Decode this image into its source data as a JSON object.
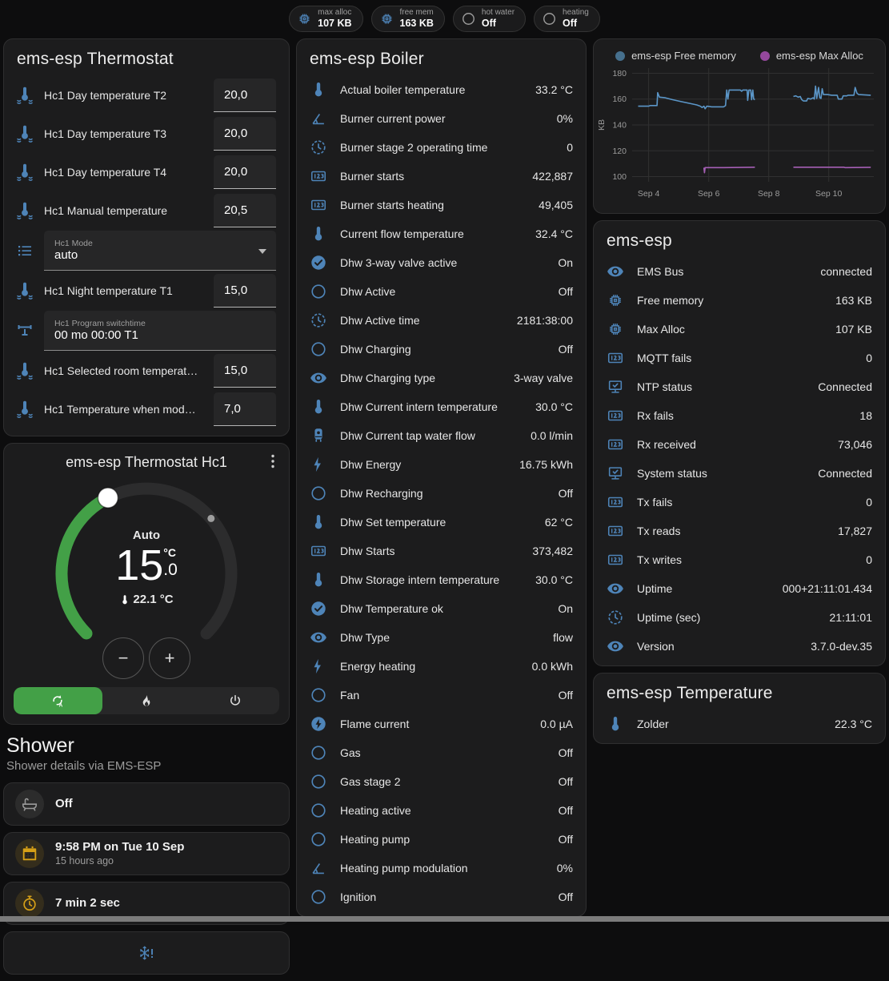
{
  "header": {
    "chips": [
      {
        "icon": "memory",
        "color": "c-blue",
        "label": "max alloc",
        "value": "107 KB"
      },
      {
        "icon": "memory",
        "color": "c-blue",
        "label": "free mem",
        "value": "163 KB"
      },
      {
        "icon": "circle",
        "color": "c-gray",
        "label": "hot water",
        "value": "Off"
      },
      {
        "icon": "circle",
        "color": "c-gray",
        "label": "heating",
        "value": "Off"
      }
    ]
  },
  "thermostat_card": {
    "title": "ems-esp Thermostat",
    "rows": [
      {
        "type": "number",
        "icon": "thermometer-water",
        "label": "Hc1 Day temperature T2",
        "value": "20,0"
      },
      {
        "type": "number",
        "icon": "thermometer-water",
        "label": "Hc1 Day temperature T3",
        "value": "20,0"
      },
      {
        "type": "number",
        "icon": "thermometer-water",
        "label": "Hc1 Day temperature T4",
        "value": "20,0"
      },
      {
        "type": "number",
        "icon": "thermometer-water",
        "label": "Hc1 Manual temperature",
        "value": "20,5"
      },
      {
        "type": "select",
        "icon": "list",
        "box_label": "Hc1 Mode",
        "value": "auto"
      },
      {
        "type": "number",
        "icon": "thermometer-water",
        "label": "Hc1 Night temperature T1",
        "value": "15,0"
      },
      {
        "type": "text",
        "icon": "pipe",
        "box_label": "Hc1 Program switchtime",
        "value": "00 mo 00:00 T1"
      },
      {
        "type": "number",
        "icon": "thermometer-water",
        "label": "Hc1 Selected room temperat…",
        "value": "15,0"
      },
      {
        "type": "number",
        "icon": "thermometer-water",
        "label": "Hc1 Temperature when mod…",
        "value": "7,0"
      }
    ]
  },
  "dial_card": {
    "title": "ems-esp Thermostat Hc1",
    "mode_label": "Auto",
    "target_int": "15",
    "target_dec": ".0",
    "unit": "°C",
    "current_label": "22.1 °C",
    "min": 5,
    "max": 30,
    "target": 15,
    "current": 22.1,
    "accent": "#43a047",
    "modes": [
      {
        "icon": "auto",
        "active": true
      },
      {
        "icon": "fire",
        "active": false
      },
      {
        "icon": "power",
        "active": false
      }
    ]
  },
  "shower": {
    "title": "Shower",
    "subtitle": "Shower details via EMS-ESP",
    "cards": [
      {
        "icon": "bathtub",
        "color": "c-gray",
        "bg": "",
        "value": "Off",
        "sub": "",
        "name": "shower-state-card",
        "centered": false
      },
      {
        "icon": "calendar",
        "color": "c-amber",
        "bg": "amber",
        "value": "9:58 PM on Tue 10 Sep",
        "sub": "15 hours ago",
        "name": "shower-last-time-card",
        "centered": false
      },
      {
        "icon": "timer",
        "color": "c-amber",
        "bg": "amber",
        "value": "7 min 2 sec",
        "sub": "",
        "name": "shower-duration-card",
        "centered": false
      },
      {
        "icon": "snowflake-alert",
        "color": "c-blue",
        "bg": "bare",
        "value": "",
        "sub": "",
        "name": "shower-alert-card",
        "centered": true
      }
    ]
  },
  "boiler_card": {
    "title": "ems-esp Boiler",
    "rows": [
      {
        "icon": "thermometer",
        "label": "Actual boiler temperature",
        "value": "33.2 °C"
      },
      {
        "icon": "angle",
        "label": "Burner current power",
        "value": "0%"
      },
      {
        "icon": "clock",
        "label": "Burner stage 2 operating time",
        "value": "0"
      },
      {
        "icon": "counter",
        "label": "Burner starts",
        "value": "422,887"
      },
      {
        "icon": "counter",
        "label": "Burner starts heating",
        "value": "49,405"
      },
      {
        "icon": "thermometer",
        "label": "Current flow temperature",
        "value": "32.4 °C"
      },
      {
        "icon": "check-circle",
        "label": "Dhw 3-way valve active",
        "value": "On"
      },
      {
        "icon": "circle",
        "label": "Dhw Active",
        "value": "Off"
      },
      {
        "icon": "clock",
        "label": "Dhw Active time",
        "value": "2181:38:00"
      },
      {
        "icon": "circle",
        "label": "Dhw Charging",
        "value": "Off"
      },
      {
        "icon": "eye",
        "label": "Dhw Charging type",
        "value": "3-way valve"
      },
      {
        "icon": "thermometer",
        "label": "Dhw Current intern temperature",
        "value": "30.0 °C"
      },
      {
        "icon": "boiler",
        "label": "Dhw Current tap water flow",
        "value": "0.0 l/min"
      },
      {
        "icon": "flash",
        "label": "Dhw Energy",
        "value": "16.75 kWh"
      },
      {
        "icon": "circle",
        "label": "Dhw Recharging",
        "value": "Off"
      },
      {
        "icon": "thermometer",
        "label": "Dhw Set temperature",
        "value": "62 °C"
      },
      {
        "icon": "counter",
        "label": "Dhw Starts",
        "value": "373,482"
      },
      {
        "icon": "thermometer",
        "label": "Dhw Storage intern temperature",
        "value": "30.0 °C"
      },
      {
        "icon": "check-circle",
        "label": "Dhw Temperature ok",
        "value": "On"
      },
      {
        "icon": "eye",
        "label": "Dhw Type",
        "value": "flow"
      },
      {
        "icon": "flash",
        "label": "Energy heating",
        "value": "0.0 kWh"
      },
      {
        "icon": "circle",
        "label": "Fan",
        "value": "Off"
      },
      {
        "icon": "flash-circle",
        "label": "Flame current",
        "value": "0.0 µA"
      },
      {
        "icon": "circle",
        "label": "Gas",
        "value": "Off"
      },
      {
        "icon": "circle",
        "label": "Gas stage 2",
        "value": "Off"
      },
      {
        "icon": "circle",
        "label": "Heating active",
        "value": "Off"
      },
      {
        "icon": "circle",
        "label": "Heating pump",
        "value": "Off"
      },
      {
        "icon": "angle",
        "label": "Heating pump modulation",
        "value": "0%"
      },
      {
        "icon": "circle",
        "label": "Ignition",
        "value": "Off"
      }
    ]
  },
  "chart_card": {
    "chart_data": {
      "type": "line",
      "ylabel": "KB",
      "legend_position": "top",
      "grid": true,
      "x_tick_values": [
        4,
        6,
        8,
        10
      ],
      "x_tick_labels": [
        "Sep 4",
        "Sep 6",
        "Sep 8",
        "Sep 10"
      ],
      "y_ticks": [
        100,
        120,
        140,
        160,
        180
      ],
      "xlim": [
        3.45,
        11.5
      ],
      "ylim": [
        96,
        184
      ],
      "series": [
        {
          "name": "ems-esp Free memory",
          "color": "#5b96c8",
          "dot_color": "#46708e",
          "segments": [
            [
              [
                3.65,
                154.5
              ],
              [
                4.0,
                154.5
              ],
              [
                4.05,
                155
              ],
              [
                4.28,
                155
              ],
              [
                4.3,
                165
              ],
              [
                4.36,
                161.5
              ],
              [
                4.55,
                161
              ],
              [
                4.8,
                159.5
              ],
              [
                5.1,
                158
              ],
              [
                5.4,
                156.5
              ],
              [
                5.6,
                155.5
              ],
              [
                5.72,
                154.5
              ],
              [
                5.78,
                153.5
              ],
              [
                5.84,
                154.5
              ],
              [
                5.88,
                152.5
              ],
              [
                5.94,
                154.5
              ],
              [
                6.1,
                154
              ],
              [
                6.5,
                154
              ],
              [
                6.56,
                155
              ],
              [
                6.6,
                167
              ],
              [
                6.64,
                160
              ],
              [
                6.68,
                167
              ],
              [
                7.05,
                167
              ],
              [
                7.1,
                166
              ],
              [
                7.14,
                167
              ],
              [
                7.28,
                167
              ],
              [
                7.3,
                159
              ],
              [
                7.34,
                167
              ],
              [
                7.4,
                167
              ],
              [
                7.43,
                159.5
              ],
              [
                7.47,
                167
              ],
              [
                7.5,
                160
              ],
              [
                7.54,
                159.5
              ]
            ],
            [
              [
                8.82,
                162
              ],
              [
                8.9,
                162.5
              ],
              [
                8.98,
                161.5
              ],
              [
                9.05,
                162
              ],
              [
                9.1,
                159.5
              ],
              [
                9.16,
                158.5
              ],
              [
                9.26,
                158.5
              ],
              [
                9.3,
                160.5
              ],
              [
                9.4,
                160
              ],
              [
                9.48,
                161
              ],
              [
                9.52,
                160
              ],
              [
                9.56,
                170
              ],
              [
                9.6,
                160.5
              ],
              [
                9.66,
                169
              ],
              [
                9.7,
                161
              ],
              [
                9.74,
                160.5
              ],
              [
                9.78,
                168
              ],
              [
                9.82,
                163.5
              ],
              [
                9.95,
                163.5
              ],
              [
                10.1,
                163
              ],
              [
                10.28,
                163
              ],
              [
                10.32,
                160
              ],
              [
                10.44,
                160
              ],
              [
                10.48,
                162.5
              ],
              [
                10.6,
                162.5
              ],
              [
                10.64,
                163
              ],
              [
                10.84,
                163
              ],
              [
                10.88,
                169
              ],
              [
                10.94,
                164.5
              ],
              [
                11.0,
                163.5
              ],
              [
                11.4,
                163
              ]
            ]
          ]
        },
        {
          "name": "ems-esp Max Alloc",
          "color": "#a55fb5",
          "dot_color": "#94489c",
          "segments": [
            [
              [
                5.84,
                107
              ],
              [
                5.86,
                103
              ],
              [
                5.88,
                107
              ],
              [
                6.5,
                107
              ],
              [
                7.54,
                107.3
              ]
            ],
            [
              [
                8.82,
                107.3
              ],
              [
                10.5,
                107.3
              ],
              [
                10.54,
                107
              ],
              [
                11.4,
                107.2
              ]
            ]
          ]
        }
      ]
    }
  },
  "emsesp_card": {
    "title": "ems-esp",
    "rows": [
      {
        "icon": "eye",
        "label": "EMS Bus",
        "value": "connected"
      },
      {
        "icon": "memory",
        "label": "Free memory",
        "value": "163 KB"
      },
      {
        "icon": "memory",
        "label": "Max Alloc",
        "value": "107 KB"
      },
      {
        "icon": "counter",
        "label": "MQTT fails",
        "value": "0"
      },
      {
        "icon": "monitor-check",
        "label": "NTP status",
        "value": "Connected"
      },
      {
        "icon": "counter",
        "label": "Rx fails",
        "value": "18"
      },
      {
        "icon": "counter",
        "label": "Rx received",
        "value": "73,046"
      },
      {
        "icon": "monitor-check",
        "label": "System status",
        "value": "Connected"
      },
      {
        "icon": "counter",
        "label": "Tx fails",
        "value": "0"
      },
      {
        "icon": "counter",
        "label": "Tx reads",
        "value": "17,827"
      },
      {
        "icon": "counter",
        "label": "Tx writes",
        "value": "0"
      },
      {
        "icon": "eye",
        "label": "Uptime",
        "value": "000+21:11:01.434"
      },
      {
        "icon": "clock",
        "label": "Uptime (sec)",
        "value": "21:11:01"
      },
      {
        "icon": "eye",
        "label": "Version",
        "value": "3.7.0-dev.35"
      }
    ]
  },
  "temperature_card": {
    "title": "ems-esp Temperature",
    "rows": [
      {
        "icon": "thermometer",
        "label": "Zolder",
        "value": "22.3 °C"
      }
    ]
  }
}
